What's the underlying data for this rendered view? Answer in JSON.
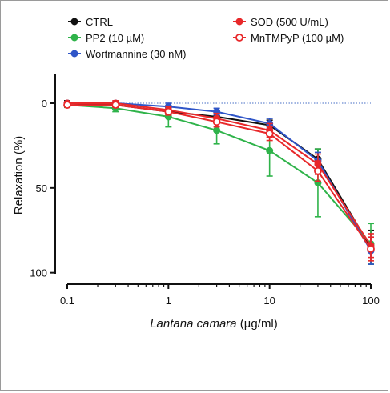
{
  "chart_data": {
    "type": "line",
    "x": [
      0.1,
      0.3,
      1,
      3,
      10,
      30,
      100
    ],
    "xscale": "log",
    "xlim": [
      0.1,
      100
    ],
    "ylim": [
      0,
      120
    ],
    "yinverted": true,
    "xticks": [
      "0.1",
      "1",
      "10",
      "100"
    ],
    "yticks": [
      "0",
      "50",
      "100"
    ],
    "ylabel": "Relaxation (%)",
    "xlabel_italic": "Lantana camara",
    "xlabel_unit": " (µg/ml)",
    "reference_line": {
      "y": 0,
      "color": "#6a8ad0",
      "style": "dotted"
    },
    "legend_position": "top",
    "series": [
      {
        "name": "CTRL",
        "color": "#111111",
        "marker": "filled-circle",
        "values": [
          0,
          1,
          5,
          8,
          13,
          33,
          85
        ],
        "errors": [
          1.5,
          1.5,
          2,
          2,
          3,
          6,
          10
        ]
      },
      {
        "name": "PP2 (10 µM)",
        "color": "#2fb34a",
        "marker": "filled-circle",
        "values": [
          1,
          3,
          8,
          16,
          28,
          47,
          83
        ],
        "errors": [
          1.5,
          2,
          6,
          8,
          15,
          20,
          12
        ]
      },
      {
        "name": "Wortmannine (30 nM)",
        "color": "#2f55c8",
        "marker": "filled-circle",
        "values": [
          0,
          0,
          2,
          5,
          12,
          34,
          87
        ],
        "errors": [
          1,
          1,
          2,
          2,
          3,
          5,
          8
        ]
      },
      {
        "name": "SOD (500 U/mL)",
        "color": "#e8282a",
        "marker": "filled-circle",
        "values": [
          0,
          0,
          4,
          9,
          16,
          36,
          84
        ],
        "errors": [
          1,
          1.5,
          2,
          3,
          4,
          6,
          7
        ]
      },
      {
        "name": "MnTMPyP (100 µM)",
        "color": "#e8282a",
        "marker": "open-circle",
        "values": [
          1,
          1,
          5,
          11,
          18,
          40,
          86
        ],
        "errors": [
          1,
          1.5,
          2,
          3,
          4,
          6,
          7
        ]
      }
    ]
  }
}
